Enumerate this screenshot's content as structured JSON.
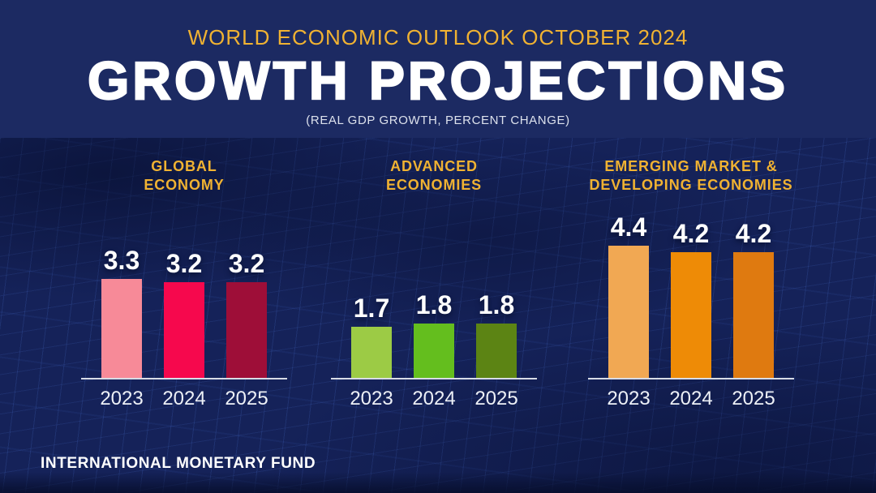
{
  "header": {
    "kicker": "WORLD ECONOMIC OUTLOOK OCTOBER 2024",
    "title": "GROWTH PROJECTIONS",
    "subtitle": "(REAL GDP GROWTH, PERCENT CHANGE)"
  },
  "footer": {
    "org": "INTERNATIONAL MONETARY FUND"
  },
  "colors": {
    "background_navy": "#1c2a62",
    "mesh_line_blue": "#527ee4",
    "accent_gold": "#f0b232",
    "baseline_gray": "#d8dce6",
    "text_white": "#ffffff"
  },
  "chart_data": [
    {
      "type": "bar",
      "title": "GLOBAL ECONOMY",
      "title_lines": [
        "GLOBAL",
        "ECONOMY"
      ],
      "categories": [
        "2023",
        "2024",
        "2025"
      ],
      "values": [
        3.3,
        3.2,
        3.2
      ],
      "bar_colors": [
        "#f78a98",
        "#f6084d",
        "#9e0e38"
      ],
      "ylim": [
        0,
        5
      ],
      "grid": false,
      "legend": false,
      "value_labels": "above bars"
    },
    {
      "type": "bar",
      "title": "ADVANCED ECONOMIES",
      "title_lines": [
        "ADVANCED",
        "ECONOMIES"
      ],
      "categories": [
        "2023",
        "2024",
        "2025"
      ],
      "values": [
        1.7,
        1.8,
        1.8
      ],
      "bar_colors": [
        "#9ccb45",
        "#64be1e",
        "#5c8414"
      ],
      "ylim": [
        0,
        5
      ],
      "grid": false,
      "legend": false,
      "value_labels": "above bars"
    },
    {
      "type": "bar",
      "title": "EMERGING MARKET & DEVELOPING ECONOMIES",
      "title_lines": [
        "EMERGING MARKET &",
        "DEVELOPING ECONOMIES"
      ],
      "categories": [
        "2023",
        "2024",
        "2025"
      ],
      "values": [
        4.4,
        4.2,
        4.2
      ],
      "bar_colors": [
        "#f1a853",
        "#ee8b06",
        "#df7a10"
      ],
      "ylim": [
        0,
        5
      ],
      "grid": false,
      "legend": false,
      "value_labels": "above bars"
    }
  ]
}
